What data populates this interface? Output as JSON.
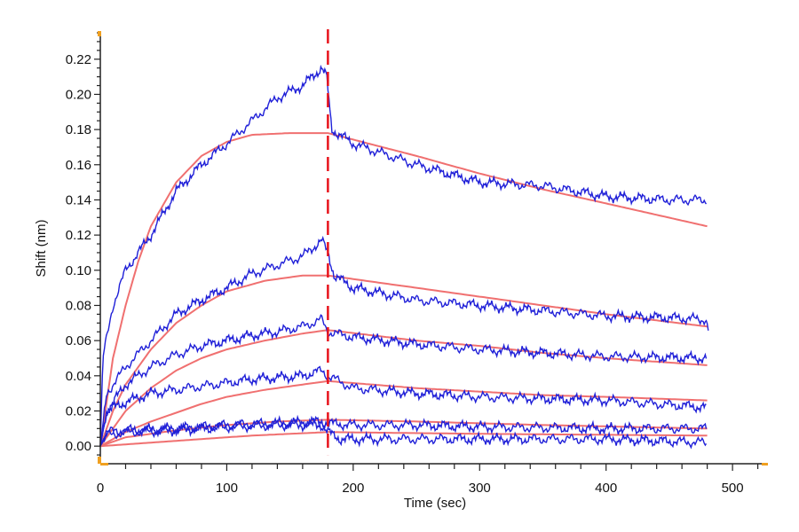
{
  "chart_data": {
    "type": "line",
    "title": "",
    "xlabel": "Time (sec)",
    "ylabel": "Shift (nm)",
    "xlim": [
      0,
      528
    ],
    "ylim": [
      -0.01,
      0.235
    ],
    "x_ticks": [
      0,
      100,
      200,
      300,
      400,
      500
    ],
    "x_tick_labels": [
      "0",
      "100",
      "200",
      "300",
      "400",
      "500"
    ],
    "y_ticks": [
      0,
      0.02,
      0.04,
      0.06,
      0.08,
      0.1,
      0.12,
      0.14,
      0.16,
      0.18,
      0.2,
      0.22
    ],
    "y_tick_labels": [
      "0.00",
      "0.02",
      "0.04",
      "0.06",
      "0.08",
      "0.10",
      "0.12",
      "0.14",
      "0.16",
      "0.18",
      "0.20",
      "0.22"
    ],
    "grid": false,
    "annotations": [
      {
        "type": "vertical-dashed-line",
        "x": 180,
        "color": "#e8141c",
        "meaning": "association/dissociation boundary"
      }
    ],
    "colors": {
      "measured": "#2020d8",
      "fit": "#f07070",
      "marker": "#f0a020",
      "axis": "#222222"
    },
    "series": [
      {
        "name": "measured-1",
        "kind": "measured",
        "points": [
          [
            0,
            0
          ],
          [
            2,
            0.05
          ],
          [
            10,
            0.08
          ],
          [
            20,
            0.1
          ],
          [
            40,
            0.12
          ],
          [
            60,
            0.145
          ],
          [
            80,
            0.16
          ],
          [
            100,
            0.172
          ],
          [
            120,
            0.185
          ],
          [
            140,
            0.198
          ],
          [
            160,
            0.205
          ],
          [
            175,
            0.215
          ],
          [
            179,
            0.21
          ],
          [
            183,
            0.18
          ],
          [
            200,
            0.172
          ],
          [
            250,
            0.16
          ],
          [
            300,
            0.15
          ],
          [
            350,
            0.148
          ],
          [
            400,
            0.142
          ],
          [
            450,
            0.14
          ],
          [
            480,
            0.14
          ]
        ]
      },
      {
        "name": "fit-1",
        "kind": "fit",
        "points": [
          [
            0,
            0
          ],
          [
            10,
            0.05
          ],
          [
            20,
            0.08
          ],
          [
            30,
            0.105
          ],
          [
            40,
            0.125
          ],
          [
            60,
            0.15
          ],
          [
            80,
            0.165
          ],
          [
            100,
            0.173
          ],
          [
            120,
            0.177
          ],
          [
            150,
            0.178
          ],
          [
            180,
            0.178
          ],
          [
            250,
            0.165
          ],
          [
            300,
            0.155
          ],
          [
            350,
            0.146
          ],
          [
            400,
            0.138
          ],
          [
            480,
            0.125
          ]
        ]
      },
      {
        "name": "measured-2",
        "kind": "measured",
        "points": [
          [
            0,
            0
          ],
          [
            5,
            0.03
          ],
          [
            20,
            0.045
          ],
          [
            40,
            0.06
          ],
          [
            60,
            0.075
          ],
          [
            80,
            0.083
          ],
          [
            100,
            0.09
          ],
          [
            120,
            0.098
          ],
          [
            140,
            0.103
          ],
          [
            160,
            0.108
          ],
          [
            175,
            0.117
          ],
          [
            180,
            0.11
          ],
          [
            185,
            0.097
          ],
          [
            200,
            0.09
          ],
          [
            250,
            0.083
          ],
          [
            300,
            0.08
          ],
          [
            350,
            0.077
          ],
          [
            400,
            0.074
          ],
          [
            450,
            0.073
          ],
          [
            479,
            0.072
          ],
          [
            481,
            0.065
          ]
        ]
      },
      {
        "name": "fit-2",
        "kind": "fit",
        "points": [
          [
            0,
            0
          ],
          [
            10,
            0.02
          ],
          [
            20,
            0.035
          ],
          [
            40,
            0.055
          ],
          [
            60,
            0.07
          ],
          [
            80,
            0.08
          ],
          [
            100,
            0.088
          ],
          [
            130,
            0.094
          ],
          [
            160,
            0.097
          ],
          [
            180,
            0.097
          ],
          [
            250,
            0.09
          ],
          [
            300,
            0.085
          ],
          [
            350,
            0.08
          ],
          [
            400,
            0.075
          ],
          [
            480,
            0.068
          ]
        ]
      },
      {
        "name": "measured-3",
        "kind": "measured",
        "points": [
          [
            0,
            0
          ],
          [
            5,
            0.02
          ],
          [
            20,
            0.035
          ],
          [
            40,
            0.045
          ],
          [
            60,
            0.052
          ],
          [
            80,
            0.057
          ],
          [
            100,
            0.06
          ],
          [
            120,
            0.063
          ],
          [
            140,
            0.065
          ],
          [
            160,
            0.068
          ],
          [
            175,
            0.072
          ],
          [
            180,
            0.065
          ],
          [
            200,
            0.062
          ],
          [
            250,
            0.058
          ],
          [
            300,
            0.055
          ],
          [
            350,
            0.053
          ],
          [
            400,
            0.051
          ],
          [
            480,
            0.05
          ]
        ]
      },
      {
        "name": "fit-3",
        "kind": "fit",
        "points": [
          [
            0,
            0
          ],
          [
            20,
            0.02
          ],
          [
            40,
            0.033
          ],
          [
            60,
            0.043
          ],
          [
            80,
            0.05
          ],
          [
            100,
            0.055
          ],
          [
            130,
            0.06
          ],
          [
            160,
            0.064
          ],
          [
            180,
            0.066
          ],
          [
            250,
            0.06
          ],
          [
            300,
            0.057
          ],
          [
            350,
            0.053
          ],
          [
            400,
            0.05
          ],
          [
            480,
            0.046
          ]
        ]
      },
      {
        "name": "measured-4",
        "kind": "measured",
        "points": [
          [
            0,
            0
          ],
          [
            5,
            0.02
          ],
          [
            20,
            0.025
          ],
          [
            40,
            0.03
          ],
          [
            60,
            0.032
          ],
          [
            80,
            0.034
          ],
          [
            100,
            0.036
          ],
          [
            120,
            0.038
          ],
          [
            140,
            0.039
          ],
          [
            160,
            0.04
          ],
          [
            175,
            0.043
          ],
          [
            180,
            0.04
          ],
          [
            200,
            0.033
          ],
          [
            250,
            0.03
          ],
          [
            300,
            0.028
          ],
          [
            350,
            0.027
          ],
          [
            400,
            0.026
          ],
          [
            480,
            0.022
          ]
        ]
      },
      {
        "name": "fit-4",
        "kind": "fit",
        "points": [
          [
            0,
            0
          ],
          [
            20,
            0.008
          ],
          [
            40,
            0.014
          ],
          [
            60,
            0.019
          ],
          [
            80,
            0.024
          ],
          [
            100,
            0.028
          ],
          [
            130,
            0.032
          ],
          [
            160,
            0.035
          ],
          [
            180,
            0.037
          ],
          [
            250,
            0.033
          ],
          [
            300,
            0.031
          ],
          [
            350,
            0.029
          ],
          [
            400,
            0.028
          ],
          [
            480,
            0.026
          ]
        ]
      },
      {
        "name": "measured-5",
        "kind": "measured",
        "points": [
          [
            0,
            0
          ],
          [
            5,
            0.008
          ],
          [
            20,
            0.009
          ],
          [
            60,
            0.01
          ],
          [
            100,
            0.012
          ],
          [
            140,
            0.013
          ],
          [
            175,
            0.014
          ],
          [
            180,
            0.013
          ],
          [
            200,
            0.012
          ],
          [
            250,
            0.012
          ],
          [
            300,
            0.011
          ],
          [
            400,
            0.01
          ],
          [
            480,
            0.01
          ]
        ]
      },
      {
        "name": "fit-5",
        "kind": "fit",
        "points": [
          [
            0,
            0
          ],
          [
            20,
            0.005
          ],
          [
            60,
            0.009
          ],
          [
            100,
            0.012
          ],
          [
            140,
            0.014
          ],
          [
            180,
            0.015
          ],
          [
            250,
            0.014
          ],
          [
            350,
            0.012
          ],
          [
            480,
            0.01
          ]
        ]
      },
      {
        "name": "measured-6",
        "kind": "measured",
        "points": [
          [
            0,
            0
          ],
          [
            5,
            0.006
          ],
          [
            20,
            0.008
          ],
          [
            60,
            0.009
          ],
          [
            100,
            0.011
          ],
          [
            140,
            0.012
          ],
          [
            175,
            0.012
          ],
          [
            180,
            0.008
          ],
          [
            190,
            0.004
          ],
          [
            250,
            0.004
          ],
          [
            300,
            0.004
          ],
          [
            400,
            0.004
          ],
          [
            480,
            0.002
          ]
        ]
      },
      {
        "name": "fit-6",
        "kind": "fit",
        "points": [
          [
            0,
            0
          ],
          [
            60,
            0.003
          ],
          [
            120,
            0.006
          ],
          [
            180,
            0.008
          ],
          [
            300,
            0.007
          ],
          [
            480,
            0.006
          ]
        ]
      }
    ]
  }
}
